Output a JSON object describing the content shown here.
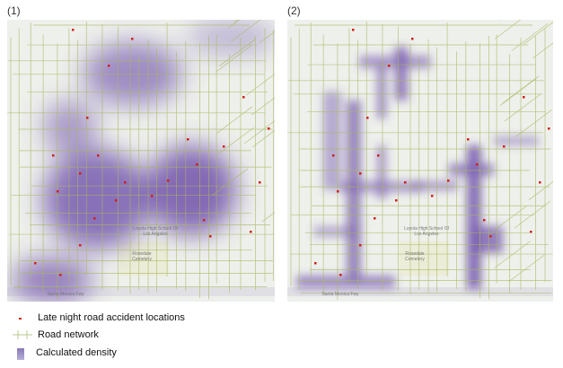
{
  "panels": [
    {
      "label": "(1)",
      "map_labels": {
        "school": "Loyola High School Of Los Angeles",
        "cemetery": "Rosedale Cemetery",
        "freeway": "Santa Monica Fwy"
      }
    },
    {
      "label": "(2)",
      "map_labels": {
        "school": "Loyola High School Of Los Angeles",
        "cemetery": "Rosedale Cemetery",
        "freeway": "Santa Monica Fwy"
      }
    }
  ],
  "legend": {
    "accidents": "Late night road accident locations",
    "roads": "Road network",
    "density": "Calculated density"
  },
  "colors": {
    "accident": "#d0201a",
    "road": "#a8b860",
    "density": "#6a4aa8",
    "background": "#eef0ec"
  }
}
